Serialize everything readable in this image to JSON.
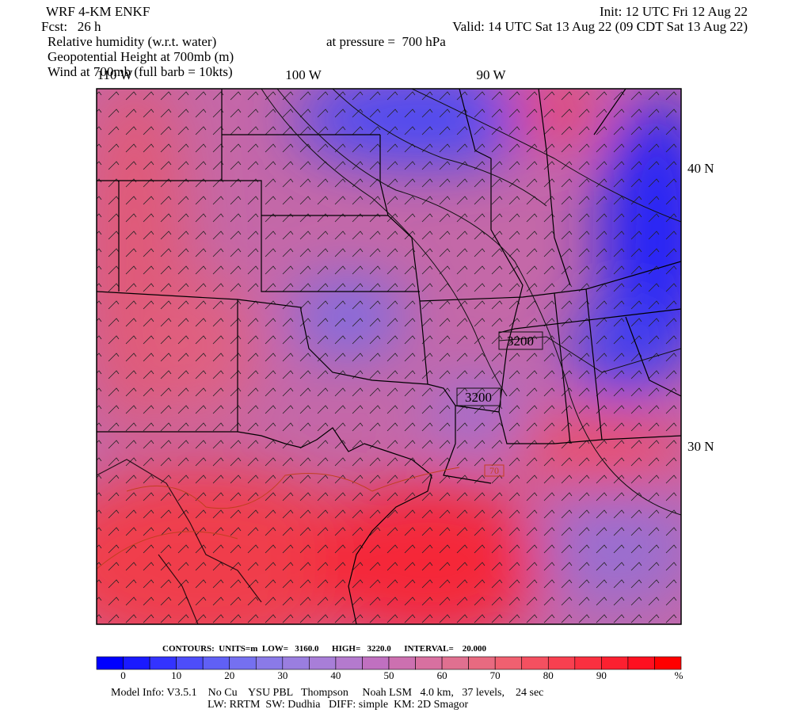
{
  "header": {
    "model": "WRF 4-KM ENKF",
    "forecast": "Fcst:   26 h",
    "init": "Init: 12 UTC Fri 12 Aug 22",
    "valid": "Valid: 14 UTC Sat 13 Aug 22 (09 CDT Sat 13 Aug 22)",
    "fields": [
      "Relative humidity (w.r.t. water)",
      "Geopotential Height at 700mb (m)",
      "Wind at 700mb (full barb = 10kts)"
    ],
    "pressure": "at pressure =  700 hPa"
  },
  "map": {
    "longitudes": [
      "110 W",
      "100 W",
      "90 W"
    ],
    "latitudes": [
      "40 N",
      "30 N"
    ],
    "contour_labels": [
      "3200",
      "3200",
      "70"
    ]
  },
  "contours": "CONTOURS:  UNITS=m  LOW=   3160.0      HIGH=   3220.0      INTERVAL=    20.000",
  "colorbar": {
    "ticks": [
      0,
      10,
      20,
      30,
      40,
      50,
      60,
      70,
      80,
      90
    ],
    "unit": "%",
    "colors": [
      "#0000ff",
      "#1a1aff",
      "#3333ff",
      "#4d4dfa",
      "#6060f5",
      "#7570f0",
      "#8a7ae8",
      "#9a7ee0",
      "#a87ed8",
      "#b47ace",
      "#c070c0",
      "#cc70b0",
      "#d870a0",
      "#e07090",
      "#e86a80",
      "#f06070",
      "#f45060",
      "#f84050",
      "#fa3040",
      "#fc2030",
      "#fe1020",
      "#ff0000"
    ]
  },
  "footer": [
    "Model Info: V3.5.1    No Cu    YSU PBL   Thompson     Noah LSM   4.0 km,   37 levels,    24 sec",
    "LW: RRTM  SW: Dudhia   DIFF: simple  KM: 2D Smagor"
  ]
}
